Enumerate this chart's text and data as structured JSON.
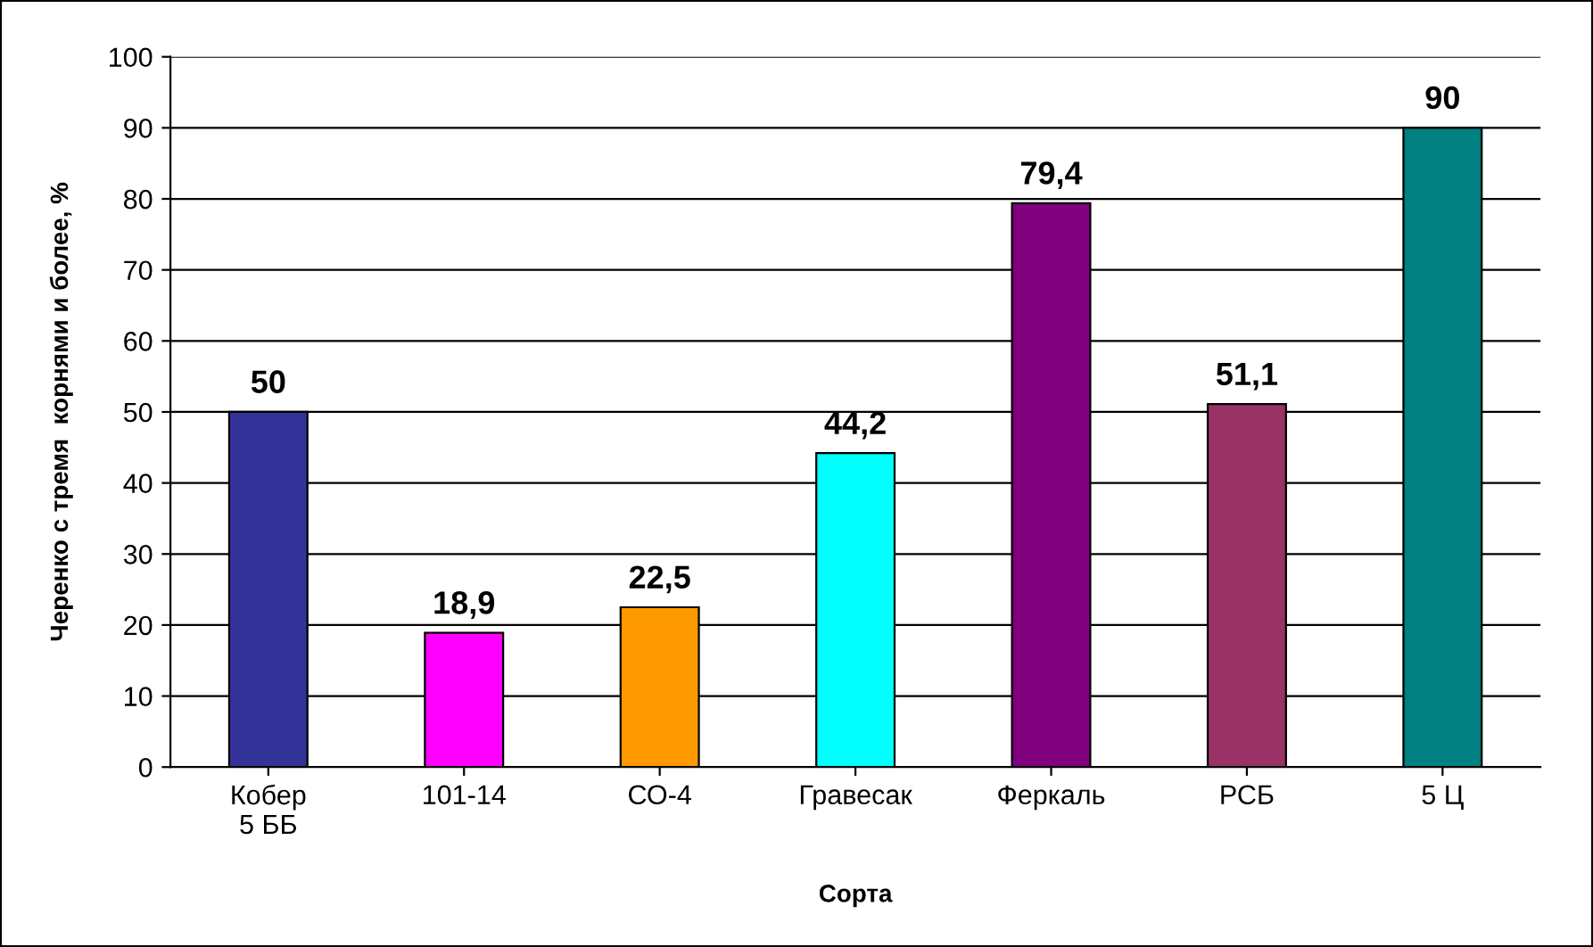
{
  "chart_data": {
    "type": "bar",
    "xlabel": "Сорта",
    "ylabel": "Черенко с тремя  корнями и более, %",
    "categories": [
      "Кобер\n5 ББ",
      "101-14",
      "СО-4",
      "Гравесак",
      "Феркаль",
      "РСБ",
      "5 Ц"
    ],
    "values": [
      50,
      18.9,
      22.5,
      44.2,
      79.4,
      51.1,
      90
    ],
    "colors": [
      "#333399",
      "#ff00ff",
      "#ff9900",
      "#00ffff",
      "#800080",
      "#993366",
      "#008080"
    ],
    "value_labels": [
      "50",
      "18,9",
      "22,5",
      "44,2",
      "79,4",
      "51,1",
      "90"
    ],
    "ylim": [
      0,
      100
    ],
    "yticks": [
      0,
      10,
      20,
      30,
      40,
      50,
      60,
      70,
      80,
      90,
      100
    ],
    "grid": "y",
    "legend": false
  }
}
